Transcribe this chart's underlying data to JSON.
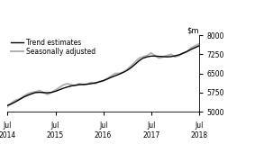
{
  "ylim": [
    5000,
    8000
  ],
  "yticks": [
    5000,
    5750,
    6500,
    7250,
    8000
  ],
  "xtick_labels": [
    "Jul\n2014",
    "Jul\n2015",
    "Jul\n2016",
    "Jul\n2017",
    "Jul\n2018"
  ],
  "xtick_positions": [
    0,
    12,
    24,
    36,
    48
  ],
  "legend_entries": [
    "Trend estimates",
    "Seasonally adjusted"
  ],
  "trend_color": "#000000",
  "seasonal_color": "#b0b0b0",
  "trend_linewidth": 1.0,
  "seasonal_linewidth": 1.4,
  "background_color": "#ffffff",
  "trend_x": [
    0,
    1,
    2,
    3,
    4,
    5,
    6,
    7,
    8,
    9,
    10,
    11,
    12,
    13,
    14,
    15,
    16,
    17,
    18,
    19,
    20,
    21,
    22,
    23,
    24,
    25,
    26,
    27,
    28,
    29,
    30,
    31,
    32,
    33,
    34,
    35,
    36,
    37,
    38,
    39,
    40,
    41,
    42,
    43,
    44,
    45,
    46,
    47,
    48
  ],
  "trend_y": [
    5250,
    5310,
    5390,
    5480,
    5570,
    5640,
    5700,
    5750,
    5760,
    5750,
    5740,
    5760,
    5800,
    5860,
    5920,
    5970,
    6010,
    6040,
    6060,
    6070,
    6080,
    6100,
    6130,
    6170,
    6220,
    6280,
    6350,
    6410,
    6470,
    6540,
    6620,
    6730,
    6860,
    7000,
    7100,
    7150,
    7180,
    7180,
    7170,
    7160,
    7150,
    7160,
    7190,
    7230,
    7290,
    7360,
    7440,
    7510,
    7580
  ],
  "seasonal_x": [
    0,
    1,
    2,
    3,
    4,
    5,
    6,
    7,
    8,
    9,
    10,
    11,
    12,
    13,
    14,
    15,
    16,
    17,
    18,
    19,
    20,
    21,
    22,
    23,
    24,
    25,
    26,
    27,
    28,
    29,
    30,
    31,
    32,
    33,
    34,
    35,
    36,
    37,
    38,
    39,
    40,
    41,
    42,
    43,
    44,
    45,
    46,
    47,
    48
  ],
  "seasonal_y": [
    5200,
    5350,
    5450,
    5500,
    5600,
    5700,
    5750,
    5780,
    5830,
    5750,
    5680,
    5750,
    5850,
    5950,
    6050,
    6100,
    6050,
    6020,
    6100,
    6050,
    6080,
    6150,
    6100,
    6180,
    6200,
    6300,
    6400,
    6500,
    6500,
    6550,
    6650,
    6800,
    6950,
    7100,
    7150,
    7200,
    7300,
    7200,
    7100,
    7150,
    7200,
    7250,
    7150,
    7200,
    7300,
    7350,
    7500,
    7580,
    7650
  ]
}
